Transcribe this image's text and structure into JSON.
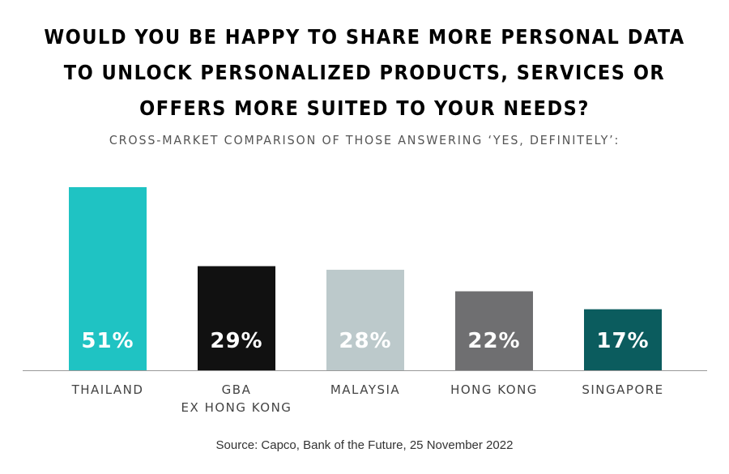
{
  "title_lines": [
    "WOULD YOU BE HAPPY TO SHARE MORE PERSONAL DATA",
    "TO UNLOCK PERSONALIZED PRODUCTS, SERVICES OR",
    "OFFERS MORE SUITED TO YOUR NEEDS?"
  ],
  "subtitle": "CROSS-MARKET COMPARISON OF THOSE ANSWERING ‘YES, DEFINITELY’:",
  "source": "Source: Capco, Bank of the Future, 25 November 2022",
  "chart_data": {
    "type": "bar",
    "title": "WOULD YOU BE HAPPY TO SHARE MORE PERSONAL DATA TO UNLOCK PERSONALIZED PRODUCTS, SERVICES OR OFFERS MORE SUITED TO YOUR NEEDS?",
    "subtitle": "CROSS-MARKET COMPARISON OF THOSE ANSWERING ‘YES, DEFINITELY’:",
    "categories": [
      [
        "THAILAND"
      ],
      [
        "GBA",
        "EX HONG KONG"
      ],
      [
        "MALAYSIA"
      ],
      [
        "HONG KONG"
      ],
      [
        "SINGAPORE"
      ]
    ],
    "values": [
      51,
      29,
      28,
      22,
      17
    ],
    "value_labels": [
      "51%",
      "29%",
      "28%",
      "22%",
      "17%"
    ],
    "colors": [
      "#1fc3c3",
      "#111111",
      "#bcc9cb",
      "#6f6f71",
      "#0b5c5e"
    ],
    "label_colors": [
      "#ffffff",
      "#ffffff",
      "#ffffff",
      "#ffffff",
      "#ffffff"
    ],
    "axis_color": "#999999",
    "ylim": [
      0,
      51
    ],
    "grid": false,
    "legend": "none"
  }
}
